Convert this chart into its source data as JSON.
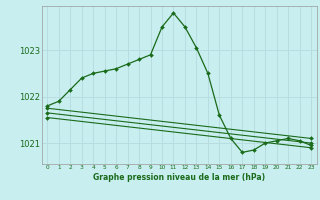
{
  "title": "Graphe pression niveau de la mer (hPa)",
  "background_color": "#c8eef0",
  "grid_color": "#b8dde0",
  "line_color": "#1a6b1a",
  "xlim": [
    -0.5,
    23.5
  ],
  "ylim": [
    1020.55,
    1023.95
  ],
  "yticks": [
    1021,
    1022,
    1023
  ],
  "xticks": [
    0,
    1,
    2,
    3,
    4,
    5,
    6,
    7,
    8,
    9,
    10,
    11,
    12,
    13,
    14,
    15,
    16,
    17,
    18,
    19,
    20,
    21,
    22,
    23
  ],
  "series": [
    {
      "x": [
        0,
        1,
        2,
        3,
        4,
        5,
        6,
        7,
        8,
        9,
        10,
        11,
        12,
        13,
        14,
        15,
        16,
        17,
        18,
        19,
        20,
        21,
        22,
        23
      ],
      "y": [
        1021.8,
        1021.9,
        1022.15,
        1022.4,
        1022.5,
        1022.55,
        1022.6,
        1022.7,
        1022.8,
        1022.9,
        1023.5,
        1023.8,
        1023.5,
        1023.05,
        1022.5,
        1021.6,
        1021.1,
        1020.8,
        1020.85,
        1021.0,
        1021.05,
        1021.1,
        1021.05,
        1020.95
      ]
    },
    {
      "x": [
        0,
        23
      ],
      "y": [
        1021.75,
        1021.1
      ]
    },
    {
      "x": [
        0,
        23
      ],
      "y": [
        1021.65,
        1021.0
      ]
    },
    {
      "x": [
        0,
        23
      ],
      "y": [
        1021.55,
        1020.9
      ]
    }
  ]
}
